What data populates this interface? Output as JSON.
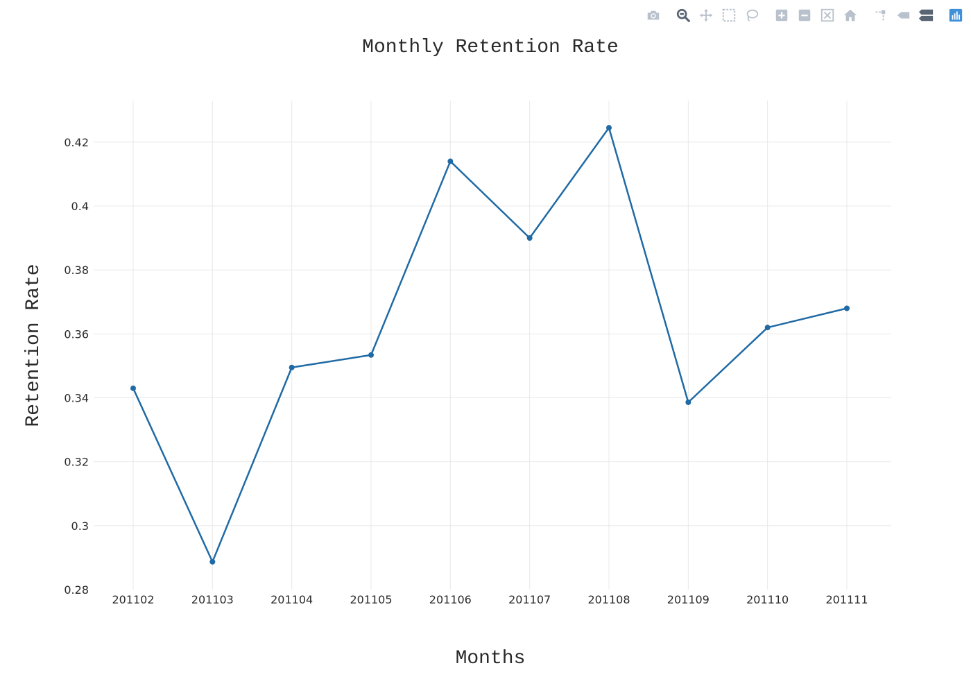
{
  "modebar": {
    "buttons": [
      {
        "icon": "camera-icon",
        "group": 0
      },
      {
        "icon": "zoom-icon",
        "group": 1
      },
      {
        "icon": "pan-icon",
        "group": 1
      },
      {
        "icon": "box-select-icon",
        "group": 1
      },
      {
        "icon": "lasso-select-icon",
        "group": 1
      },
      {
        "icon": "zoom-in-icon",
        "group": 2
      },
      {
        "icon": "zoom-out-icon",
        "group": 2
      },
      {
        "icon": "autoscale-icon",
        "group": 2
      },
      {
        "icon": "reset-axes-icon",
        "group": 2
      },
      {
        "icon": "spike-lines-icon",
        "group": 3
      },
      {
        "icon": "hover-closest-icon",
        "group": 3
      },
      {
        "icon": "hover-compare-icon",
        "group": 3
      },
      {
        "icon": "plotly-logo-icon",
        "group": 4
      }
    ],
    "colors": {
      "icon": "#b9c1cc",
      "active": "#5a6573",
      "logo": "#3f8fd9"
    }
  },
  "chart_data": {
    "type": "line",
    "title": "Monthly Retention Rate",
    "xlabel": "Months",
    "ylabel": "Retention Rate",
    "categories": [
      "201102",
      "201103",
      "201104",
      "201105",
      "201106",
      "201107",
      "201108",
      "201109",
      "201110",
      "201111"
    ],
    "series": [
      {
        "values": [
          0.343,
          0.2887,
          0.3495,
          0.3534,
          0.414,
          0.39,
          0.4245,
          0.3386,
          0.362,
          0.368
        ],
        "color": "#1f6aa5",
        "mode": "lines+markers"
      }
    ],
    "ylim": [
      0.28,
      0.433
    ],
    "yticks": [
      0.28,
      0.3,
      0.32,
      0.34,
      0.36,
      0.38,
      0.4,
      0.42
    ],
    "ytick_labels": [
      "0.28",
      "0.3",
      "0.32",
      "0.34",
      "0.36",
      "0.38",
      "0.4",
      "0.42"
    ],
    "grid": true,
    "legend": "none"
  }
}
